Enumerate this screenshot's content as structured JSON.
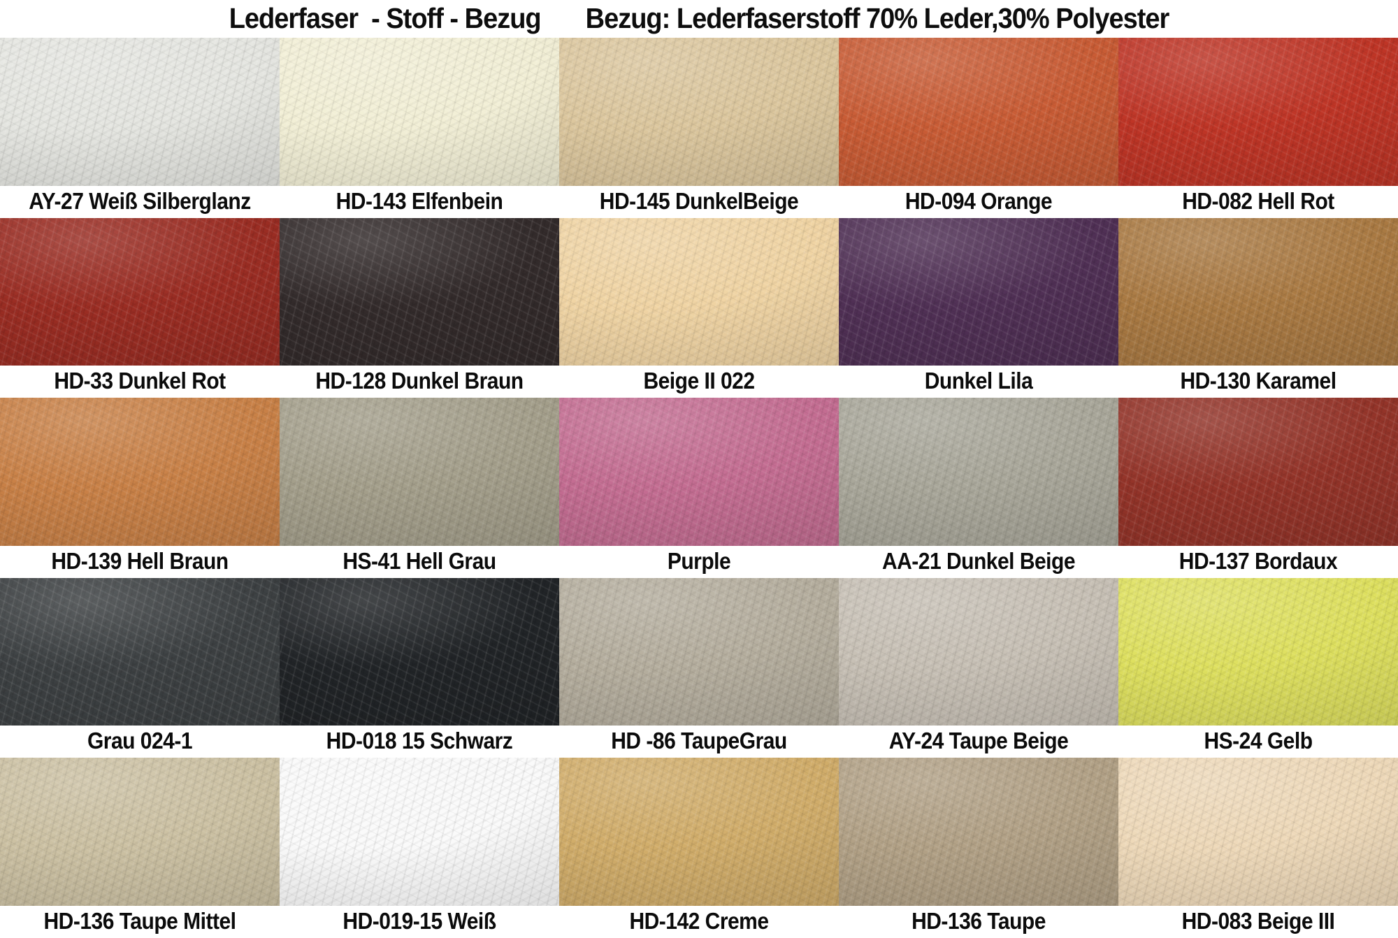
{
  "title": {
    "left": "Lederfaser  - Stoff - Bezug",
    "right": "Bezug: Lederfaserstoff 70% Leder,30% Polyester"
  },
  "swatches": [
    {
      "label": "AY-27 Weiß Silberglanz",
      "color": "#e5e6e1"
    },
    {
      "label": "HD-143 Elfenbein",
      "color": "#f2efd6"
    },
    {
      "label": "HD-145 DunkelBeige",
      "color": "#dcc79e"
    },
    {
      "label": "HD-094 Orange",
      "color": "#c95c35"
    },
    {
      "label": "HD-082 Hell Rot",
      "color": "#bf3526"
    },
    {
      "label": "HD-33 Dunkel Rot",
      "color": "#9b2d23"
    },
    {
      "label": "HD-128 Dunkel Braun",
      "color": "#332b2b"
    },
    {
      "label": "Beige II 022",
      "color": "#f0d4a4"
    },
    {
      "label": "Dunkel Lila",
      "color": "#503055"
    },
    {
      "label": "HD-130 Karamel",
      "color": "#aa7a43"
    },
    {
      "label": "HD-139 Hell Braun",
      "color": "#c98147"
    },
    {
      "label": "HS-41 Hell Grau",
      "color": "#a49f8b"
    },
    {
      "label": "Purple",
      "color": "#c46d92"
    },
    {
      "label": "AA-21 Dunkel Beige",
      "color": "#a9a79a"
    },
    {
      "label": "HD-137 Bordaux",
      "color": "#943429"
    },
    {
      "label": "Grau 024-1",
      "color": "#3d4143"
    },
    {
      "label": "HD-018 15 Schwarz",
      "color": "#212427"
    },
    {
      "label": "HD -86 TaupeGrau",
      "color": "#b5ae9e"
    },
    {
      "label": "AY-24 Taupe Beige",
      "color": "#c7c0b5"
    },
    {
      "label": "HS-24 Gelb",
      "color": "#dee05f"
    },
    {
      "label": "HD-136 Taupe Mittel",
      "color": "#ccc1a3"
    },
    {
      "label": "HD-019-15 Weiß",
      "color": "#fafafa"
    },
    {
      "label": "HD-142 Creme",
      "color": "#d1ad6a"
    },
    {
      "label": "HD-136 Taupe",
      "color": "#b2a186"
    },
    {
      "label": "HD-083 Beige III",
      "color": "#eed9b9"
    }
  ],
  "colors": {
    "page_background": "#ffffff",
    "label_bar": "#ffffff",
    "text": "#0d0d0d"
  }
}
